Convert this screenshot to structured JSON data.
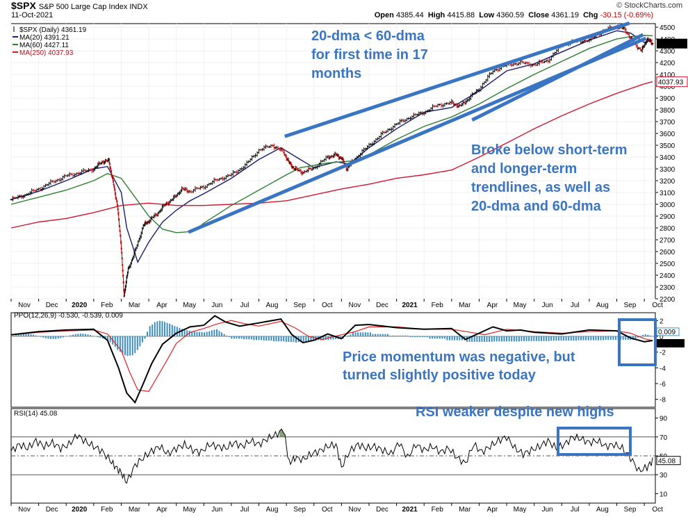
{
  "header": {
    "symbol": "$SPX",
    "name": "S&P 500 Large Cap Index INDX",
    "date": "11-Oct-2021",
    "open_label": "Open",
    "open": "4385.44",
    "high_label": "High",
    "high": "4415.88",
    "low_label": "Low",
    "low": "4360.59",
    "close_label": "Close",
    "close": "4361.19",
    "chg_label": "Chg",
    "chg": "-30.15 (-0.69%)",
    "credit": "© StockCharts.com"
  },
  "colors": {
    "price_up": "#000000",
    "price_down": "#c00000",
    "ma20": "#1a1a6e",
    "ma60": "#2e7d32",
    "ma250": "#d0162e",
    "annotation": "#3a75c4",
    "ppo_hist": "#3c8fbd",
    "ppo_signal": "#e02020",
    "rsi_fill": "#6d8f5e"
  },
  "chart_data": [
    {
      "type": "line",
      "panel": "price",
      "title": "$SPX (Daily) 4361.19",
      "legend": [
        {
          "label": "$SPX (Daily) 4361.19",
          "color": "#000000"
        },
        {
          "label": "MA(20) 4391.21",
          "color": "#1a1a6e"
        },
        {
          "label": "MA(60) 4427.11",
          "color": "#2e7d32"
        },
        {
          "label": "MA(250) 4037.93",
          "color": "#d0162e"
        }
      ],
      "x_ticks": [
        "Nov",
        "Dec",
        "2020",
        "Feb",
        "Mar",
        "Apr",
        "May",
        "Jun",
        "Jul",
        "Aug",
        "Sep",
        "Oct",
        "Nov",
        "Dec",
        "2021",
        "Feb",
        "Mar",
        "Apr",
        "May",
        "Jun",
        "Jul",
        "Aug",
        "Sep",
        "Oct"
      ],
      "x_months": [
        0,
        1,
        2,
        3,
        4,
        5,
        6,
        7,
        8,
        9,
        10,
        11,
        12,
        13,
        14,
        15,
        16,
        17,
        18,
        19,
        20,
        21,
        22,
        23
      ],
      "y_ticks": [
        2200,
        2300,
        2400,
        2500,
        2600,
        2700,
        2800,
        2900,
        3000,
        3100,
        3200,
        3300,
        3400,
        3500,
        3600,
        3700,
        3800,
        3900,
        4000,
        4100,
        4200,
        4300,
        4400,
        4500
      ],
      "ylim": [
        2200,
        4530
      ],
      "xlim": [
        0,
        23.4
      ],
      "series": [
        {
          "name": "$SPX",
          "x": [
            0,
            0.5,
            1,
            1.5,
            2,
            2.5,
            3,
            3.3,
            3.55,
            3.7,
            3.85,
            4.0,
            4.1,
            4.25,
            4.5,
            4.8,
            5.0,
            5.3,
            5.6,
            5.9,
            6.2,
            6.5,
            7.0,
            7.5,
            8.0,
            8.5,
            9.0,
            9.5,
            9.9,
            10.1,
            10.3,
            10.6,
            11.0,
            11.5,
            11.8,
            12.0,
            12.2,
            12.5,
            13.0,
            13.5,
            14.0,
            14.5,
            15.0,
            15.5,
            16.0,
            16.3,
            16.6,
            17.0,
            17.5,
            18.0,
            18.5,
            19.0,
            19.5,
            20.0,
            20.5,
            21.0,
            21.5,
            22.0,
            22.3,
            22.6,
            22.9,
            23.1,
            23.3
          ],
          "values": [
            3040,
            3080,
            3130,
            3190,
            3240,
            3270,
            3300,
            3360,
            3370,
            3190,
            3000,
            2640,
            2230,
            2450,
            2600,
            2820,
            2860,
            2920,
            3000,
            3050,
            3130,
            3110,
            3150,
            3210,
            3250,
            3330,
            3460,
            3500,
            3440,
            3350,
            3300,
            3270,
            3310,
            3400,
            3420,
            3390,
            3300,
            3390,
            3500,
            3600,
            3680,
            3740,
            3780,
            3840,
            3860,
            3830,
            3890,
            3980,
            4130,
            4180,
            4200,
            4180,
            4220,
            4350,
            4380,
            4390,
            4470,
            4510,
            4480,
            4370,
            4300,
            4400,
            4361.19
          ]
        },
        {
          "name": "MA(20)",
          "x": [
            0,
            1,
            2,
            3,
            3.5,
            4.0,
            4.2,
            4.6,
            5.0,
            5.5,
            6.0,
            6.5,
            7.0,
            8.0,
            9.0,
            9.8,
            10.5,
            11.0,
            11.8,
            12.3,
            13.0,
            14.0,
            15.0,
            16.0,
            17.0,
            18.0,
            19.0,
            20.0,
            21.0,
            22.0,
            22.5,
            23.0,
            23.3
          ],
          "values": [
            3040,
            3110,
            3200,
            3300,
            3320,
            3100,
            2800,
            2510,
            2680,
            2850,
            2950,
            3030,
            3090,
            3220,
            3380,
            3480,
            3380,
            3310,
            3360,
            3340,
            3480,
            3640,
            3780,
            3820,
            3960,
            4130,
            4190,
            4290,
            4390,
            4470,
            4450,
            4370,
            4391.21
          ]
        },
        {
          "name": "MA(60)",
          "x": [
            0,
            1,
            2,
            3,
            3.5,
            4.0,
            4.5,
            5.0,
            5.5,
            6.0,
            6.6,
            7.0,
            8.0,
            9.0,
            10.0,
            10.5,
            11.0,
            11.5,
            12.0,
            12.5,
            13.0,
            14.0,
            15.0,
            16.0,
            17.0,
            18.0,
            19.0,
            20.0,
            21.0,
            22.0,
            22.5,
            23.0,
            23.3
          ],
          "values": [
            3000,
            3060,
            3120,
            3200,
            3260,
            3220,
            3060,
            2900,
            2790,
            2760,
            2770,
            2840,
            2990,
            3120,
            3250,
            3310,
            3330,
            3350,
            3360,
            3370,
            3420,
            3550,
            3660,
            3740,
            3850,
            3980,
            4100,
            4210,
            4320,
            4400,
            4420,
            4430,
            4427.11
          ]
        },
        {
          "name": "MA(250)",
          "x": [
            0,
            1,
            2,
            3,
            4,
            5,
            6,
            7,
            8,
            9,
            10,
            11,
            12,
            13,
            14,
            15,
            16,
            17,
            18,
            19,
            20,
            21,
            22,
            23,
            23.3
          ],
          "values": [
            2800,
            2850,
            2880,
            2930,
            2990,
            3010,
            2990,
            2990,
            3000,
            3010,
            3030,
            3080,
            3130,
            3170,
            3220,
            3250,
            3290,
            3400,
            3520,
            3640,
            3750,
            3850,
            3940,
            4020,
            4037.93
          ]
        }
      ],
      "last_value_label": "4361.19",
      "ma250_label": "4037.93",
      "annotations": [
        {
          "text": [
            "20-dma < 60-dma",
            "for first time in 17",
            "months"
          ]
        },
        {
          "text": [
            "Broke below short-term",
            "and longer-term",
            "trendlines, as well as",
            "20-dma and 60-dma"
          ]
        }
      ],
      "trendlines": [
        {
          "x": [
            10.0,
            22.4
          ],
          "y": [
            3580,
            4530
          ]
        },
        {
          "x": [
            6.5,
            23.0
          ],
          "y": [
            2770,
            4400
          ]
        },
        {
          "x": [
            16.8,
            22.9
          ],
          "y": [
            3720,
            4430
          ]
        }
      ]
    },
    {
      "type": "line",
      "panel": "ppo",
      "title": "PPO(12,26,9) -0.530, -0.539, 0.009",
      "y_ticks": [
        -8,
        -6,
        -4,
        -2,
        0,
        2
      ],
      "ylim": [
        -9,
        3
      ],
      "last_value_label": "-0.530",
      "zero_label": "0.009",
      "series": [
        {
          "name": "PPO",
          "x": [
            0,
            1,
            2,
            3,
            3.5,
            3.9,
            4.2,
            4.5,
            4.8,
            5.1,
            5.5,
            6.0,
            6.5,
            7.0,
            7.4,
            7.8,
            8.3,
            9.0,
            9.8,
            10.2,
            10.6,
            11.0,
            11.5,
            12.0,
            12.5,
            13.0,
            14.0,
            15.0,
            16.0,
            16.5,
            17.0,
            17.5,
            18.0,
            18.5,
            19.0,
            20.0,
            21.0,
            22.0,
            22.5,
            23.0,
            23.3
          ],
          "values": [
            0.2,
            0.6,
            0.8,
            0.9,
            -0.5,
            -4.0,
            -7.2,
            -8.4,
            -6.0,
            -3.5,
            -1.0,
            0.4,
            1.2,
            1.4,
            2.6,
            1.8,
            1.3,
            1.7,
            2.2,
            0.2,
            -0.8,
            -0.5,
            0.3,
            -0.3,
            1.4,
            1.5,
            1.1,
            0.9,
            1.0,
            -0.4,
            0.4,
            1.2,
            0.7,
            0.8,
            0.5,
            0.3,
            0.8,
            0.7,
            -0.2,
            -0.7,
            -0.53
          ]
        },
        {
          "name": "Signal",
          "x": [
            0,
            1,
            2,
            3,
            3.5,
            4.0,
            4.3,
            4.6,
            5.0,
            5.3,
            5.7,
            6.0,
            6.5,
            7.0,
            7.5,
            8.0,
            8.5,
            9.0,
            9.8,
            10.3,
            10.8,
            11.3,
            12.0,
            12.5,
            13.0,
            14.0,
            15.0,
            16.0,
            16.7,
            17.2,
            18.0,
            19.0,
            20.0,
            21.0,
            22.0,
            22.5,
            23.0,
            23.3
          ],
          "values": [
            0.2,
            0.5,
            0.7,
            0.8,
            0.3,
            -1.8,
            -4.5,
            -6.8,
            -7.0,
            -5.2,
            -2.8,
            -0.9,
            0.5,
            1.0,
            1.6,
            2.0,
            1.6,
            1.3,
            1.9,
            1.1,
            0.0,
            -0.4,
            0.2,
            0.6,
            1.2,
            1.2,
            0.9,
            0.9,
            0.5,
            0.2,
            0.9,
            0.6,
            0.4,
            0.6,
            0.7,
            0.4,
            -0.3,
            -0.539
          ]
        },
        {
          "name": "Histogram",
          "x": [
            3.5,
            3.8,
            4.0,
            4.2,
            4.4,
            4.6,
            4.8,
            5.0,
            5.2,
            5.4,
            5.6,
            5.8,
            6.0,
            6.3,
            6.6,
            7.0,
            7.4,
            8.0,
            10.3,
            10.7,
            12.0,
            12.4,
            16.5,
            22.6,
            23.0
          ],
          "values": [
            -0.6,
            -1.5,
            -2.2,
            -2.5,
            -2.4,
            -1.6,
            -0.6,
            1.2,
            1.8,
            2.0,
            1.8,
            1.5,
            1.2,
            0.8,
            0.6,
            0.5,
            0.9,
            -0.3,
            -0.8,
            -0.6,
            -0.3,
            0.5,
            -0.7,
            -0.4,
            0.3
          ]
        }
      ],
      "annotations": [
        {
          "text": [
            "Price momentum was negative, but",
            "turned slightly positive today"
          ]
        }
      ]
    },
    {
      "type": "line",
      "panel": "rsi",
      "title": "RSI(14) 45.08",
      "y_ticks": [
        10,
        30,
        50,
        70,
        90
      ],
      "ylim": [
        0,
        100
      ],
      "reference_lines": [
        30,
        50,
        70
      ],
      "last_value_label": "45.08",
      "series": [
        {
          "name": "RSI(14)",
          "x": [
            0,
            0.3,
            0.6,
            0.9,
            1.2,
            1.5,
            1.8,
            2.1,
            2.4,
            2.7,
            3.0,
            3.3,
            3.6,
            3.8,
            4.0,
            4.2,
            4.5,
            4.8,
            5.1,
            5.4,
            5.7,
            6.0,
            6.3,
            6.6,
            6.9,
            7.2,
            7.5,
            7.8,
            8.1,
            8.4,
            8.7,
            9.0,
            9.3,
            9.6,
            9.9,
            10.1,
            10.3,
            10.6,
            10.9,
            11.2,
            11.5,
            11.8,
            12.0,
            12.3,
            12.6,
            12.9,
            13.2,
            13.5,
            13.8,
            14.1,
            14.4,
            14.7,
            15.0,
            15.3,
            15.6,
            15.9,
            16.2,
            16.5,
            16.8,
            17.1,
            17.4,
            17.7,
            18.0,
            18.3,
            18.6,
            18.9,
            19.2,
            19.5,
            19.8,
            20.1,
            20.4,
            20.7,
            21.0,
            21.3,
            21.6,
            21.9,
            22.2,
            22.5,
            22.8,
            23.1,
            23.3
          ],
          "values": [
            55,
            62,
            58,
            66,
            60,
            64,
            58,
            62,
            72,
            65,
            60,
            55,
            45,
            38,
            32,
            22,
            40,
            48,
            55,
            60,
            52,
            58,
            62,
            56,
            54,
            62,
            60,
            58,
            64,
            60,
            66,
            62,
            68,
            72,
            78,
            42,
            48,
            46,
            52,
            55,
            60,
            62,
            38,
            55,
            62,
            58,
            60,
            56,
            52,
            64,
            48,
            62,
            56,
            60,
            54,
            58,
            48,
            42,
            62,
            54,
            60,
            66,
            70,
            58,
            52,
            56,
            60,
            66,
            58,
            62,
            70,
            68,
            64,
            66,
            60,
            62,
            58,
            48,
            34,
            38,
            45.08
          ]
        }
      ],
      "annotations": [
        {
          "text": [
            "RSI weaker despite new highs"
          ]
        }
      ]
    }
  ]
}
